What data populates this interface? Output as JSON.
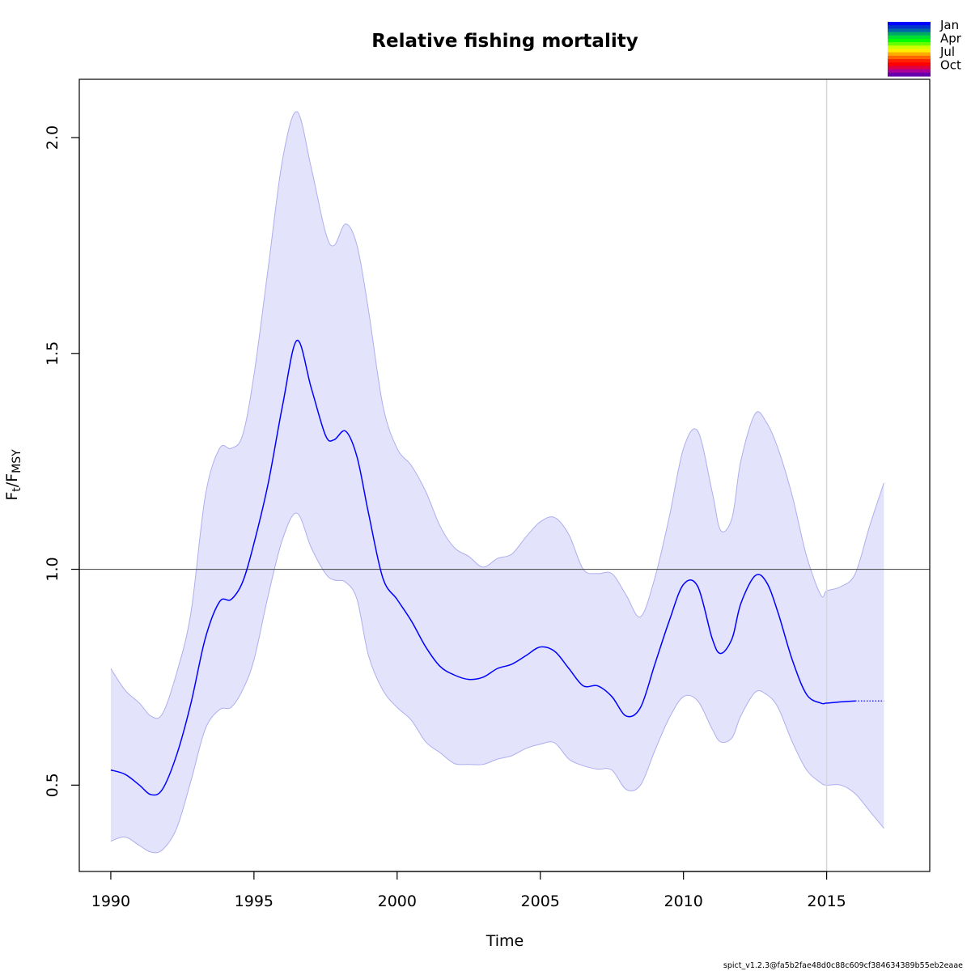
{
  "chart_data": {
    "type": "line",
    "title": "Relative fishing mortality",
    "xlabel": "Time",
    "ylabel": {
      "main": "F",
      "sub1": "t",
      "slash": "/F",
      "sub2": "MSY"
    },
    "xlim": [
      1988.9,
      2018.6
    ],
    "ylim": [
      0.3,
      2.135
    ],
    "x_ticks": [
      1990,
      1995,
      2000,
      2005,
      2010,
      2015
    ],
    "y_ticks": [
      0.5,
      1.0,
      1.5,
      2.0
    ],
    "x_tick_labels": [
      "1990",
      "1995",
      "2000",
      "2005",
      "2010",
      "2015"
    ],
    "y_tick_labels": [
      "0.5",
      "1.0",
      "1.5",
      "2.0"
    ],
    "reference_line_y": 1.0,
    "vertical_line_x": 2015,
    "estimate_end_x": 2016,
    "series": [
      {
        "role": "estimate",
        "color": "#0000ff",
        "x": [
          1990,
          1990.5,
          1991,
          1991.4,
          1991.8,
          1992.3,
          1992.8,
          1993.3,
          1993.8,
          1994.2,
          1994.6,
          1995,
          1995.5,
          1996,
          1996.5,
          1997,
          1997.5,
          1997.8,
          1998.2,
          1998.6,
          1999,
          1999.5,
          2000,
          2000.5,
          2001,
          2001.5,
          2002,
          2002.5,
          2003,
          2003.5,
          2004,
          2004.5,
          2005,
          2005.5,
          2006,
          2006.5,
          2007,
          2007.5,
          2008,
          2008.5,
          2009,
          2009.5,
          2010,
          2010.5,
          2011,
          2011.3,
          2011.7,
          2012,
          2012.5,
          2012.9,
          2013.3,
          2013.8,
          2014.3,
          2014.8,
          2015,
          2015.5,
          2016,
          2016.5,
          2017
        ],
        "values": [
          0.535,
          0.525,
          0.5,
          0.478,
          0.49,
          0.57,
          0.69,
          0.84,
          0.925,
          0.93,
          0.97,
          1.06,
          1.2,
          1.38,
          1.53,
          1.42,
          1.31,
          1.3,
          1.32,
          1.26,
          1.13,
          0.98,
          0.93,
          0.88,
          0.82,
          0.775,
          0.755,
          0.745,
          0.75,
          0.77,
          0.78,
          0.8,
          0.82,
          0.81,
          0.77,
          0.73,
          0.73,
          0.705,
          0.66,
          0.68,
          0.78,
          0.88,
          0.965,
          0.96,
          0.84,
          0.805,
          0.84,
          0.92,
          0.985,
          0.97,
          0.9,
          0.79,
          0.71,
          0.69,
          0.69,
          0.693,
          0.695,
          0.695,
          0.695
        ]
      },
      {
        "role": "upper_ci",
        "x": [
          1990,
          1990.5,
          1991,
          1991.4,
          1991.8,
          1992.3,
          1992.8,
          1993.3,
          1993.8,
          1994.2,
          1994.6,
          1995,
          1995.5,
          1996,
          1996.5,
          1997,
          1997.5,
          1997.8,
          1998.2,
          1998.6,
          1999,
          1999.5,
          2000,
          2000.5,
          2001,
          2001.5,
          2002,
          2002.5,
          2003,
          2003.5,
          2004,
          2004.5,
          2005,
          2005.5,
          2006,
          2006.5,
          2007,
          2007.5,
          2008,
          2008.5,
          2009,
          2009.5,
          2010,
          2010.5,
          2011,
          2011.3,
          2011.7,
          2012,
          2012.5,
          2012.9,
          2013.3,
          2013.8,
          2014.3,
          2014.8,
          2015,
          2015.5,
          2016,
          2016.5,
          2017
        ],
        "values": [
          0.77,
          0.72,
          0.69,
          0.66,
          0.665,
          0.76,
          0.9,
          1.17,
          1.28,
          1.28,
          1.31,
          1.45,
          1.7,
          1.95,
          2.06,
          1.93,
          1.78,
          1.75,
          1.8,
          1.75,
          1.6,
          1.38,
          1.28,
          1.24,
          1.18,
          1.1,
          1.05,
          1.03,
          1.005,
          1.025,
          1.035,
          1.075,
          1.11,
          1.12,
          1.08,
          1.0,
          0.99,
          0.99,
          0.94,
          0.89,
          0.98,
          1.12,
          1.28,
          1.32,
          1.18,
          1.09,
          1.12,
          1.25,
          1.36,
          1.34,
          1.28,
          1.17,
          1.03,
          0.94,
          0.95,
          0.96,
          0.99,
          1.1,
          1.2
        ]
      },
      {
        "role": "lower_ci",
        "x": [
          1990,
          1990.5,
          1991,
          1991.4,
          1991.8,
          1992.3,
          1992.8,
          1993.3,
          1993.8,
          1994.2,
          1994.6,
          1995,
          1995.5,
          1996,
          1996.5,
          1997,
          1997.5,
          1997.8,
          1998.2,
          1998.6,
          1999,
          1999.5,
          2000,
          2000.5,
          2001,
          2001.5,
          2002,
          2002.5,
          2003,
          2003.5,
          2004,
          2004.5,
          2005,
          2005.5,
          2006,
          2006.5,
          2007,
          2007.5,
          2008,
          2008.5,
          2009,
          2009.5,
          2010,
          2010.5,
          2011,
          2011.3,
          2011.7,
          2012,
          2012.5,
          2012.9,
          2013.3,
          2013.8,
          2014.3,
          2014.8,
          2015,
          2015.5,
          2016,
          2016.5,
          2017
        ],
        "values": [
          0.37,
          0.38,
          0.36,
          0.345,
          0.35,
          0.4,
          0.51,
          0.63,
          0.675,
          0.68,
          0.72,
          0.79,
          0.94,
          1.07,
          1.13,
          1.05,
          0.99,
          0.975,
          0.97,
          0.93,
          0.8,
          0.72,
          0.68,
          0.65,
          0.6,
          0.575,
          0.55,
          0.548,
          0.548,
          0.56,
          0.568,
          0.585,
          0.595,
          0.598,
          0.56,
          0.545,
          0.537,
          0.535,
          0.49,
          0.5,
          0.58,
          0.655,
          0.705,
          0.695,
          0.63,
          0.6,
          0.61,
          0.66,
          0.715,
          0.71,
          0.68,
          0.6,
          0.535,
          0.505,
          0.5,
          0.5,
          0.48,
          0.44,
          0.4
        ]
      }
    ],
    "band_fill": "#e3e3fc",
    "band_stroke": "#aeaeee",
    "legend": {
      "placement": "top-right",
      "labels": [
        "Jan",
        "Apr",
        "Jul",
        "Oct"
      ],
      "colors": [
        "#0000ff",
        "#0033cc",
        "#0066aa",
        "#00aa66",
        "#00dd33",
        "#00ff00",
        "#66ff00",
        "#ccff00",
        "#ffee00",
        "#ffaa00",
        "#ff6600",
        "#ff2200",
        "#ff0000",
        "#dd0044",
        "#aa0099",
        "#6600aa"
      ]
    },
    "footer_text": "spict_v1.2.3@fa5b2fae48d0c88c609cf384634389b55eb2eaae"
  }
}
